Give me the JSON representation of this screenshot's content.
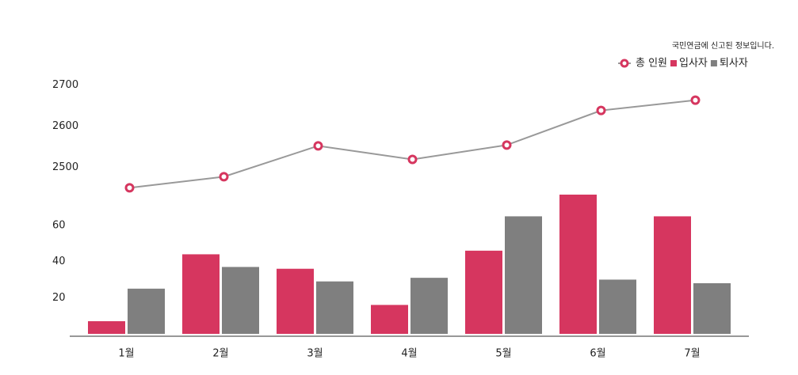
{
  "chart_data": {
    "type": "bar",
    "note": "국민연금에 신고된 정보입니다.",
    "categories": [
      "1월",
      "2월",
      "3월",
      "4월",
      "5월",
      "6월",
      "7월"
    ],
    "series": [
      {
        "name": "총 인원",
        "type": "line",
        "axis": "y2",
        "color": "#d6365f",
        "line_color": "#999999",
        "values": [
          2450,
          2477,
          2552,
          2519,
          2554,
          2638,
          2663
        ]
      },
      {
        "name": "입사자",
        "color": "#d6365f",
        "values": [
          7,
          44,
          36,
          16,
          46,
          77,
          65
        ]
      },
      {
        "name": "퇴사자",
        "color": "#7f7f7f",
        "values": [
          25,
          37,
          29,
          31,
          65,
          30,
          28
        ]
      }
    ],
    "ylim": [
      0,
      70
    ],
    "yticks": [
      20,
      40,
      60
    ],
    "y2lim": [
      2420,
      2720
    ],
    "y2ticks": [
      2500,
      2600,
      2700
    ],
    "legend": "top-right"
  }
}
